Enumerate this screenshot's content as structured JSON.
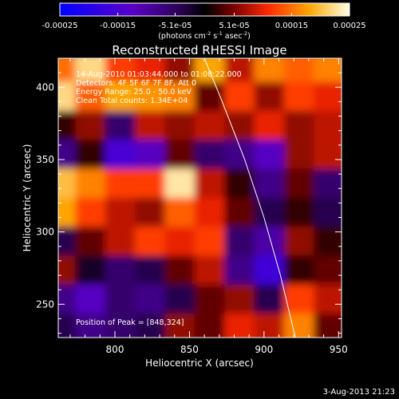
{
  "chart_data": {
    "type": "heatmap",
    "title": "Reconstructed RHESSI Image",
    "xlabel": "Heliocentric X (arcsec)",
    "ylabel": "Heliocentric Y (arcsec)",
    "xlim": [
      762,
      952
    ],
    "ylim": [
      227,
      420
    ],
    "x_ticks": [
      800,
      850,
      900,
      950
    ],
    "y_ticks": [
      250,
      300,
      350,
      400
    ],
    "colorbar": {
      "ticks": [
        "-0.00025",
        "-0.00015",
        "-5.1e-05",
        "5.1e-05",
        "0.00015",
        "0.00025"
      ],
      "tick_values": [
        -0.00025,
        -0.00015,
        -5.1e-05,
        5.1e-05,
        0.00015,
        0.00025
      ],
      "range": [
        -0.00025,
        0.00025
      ],
      "units": "(photons cm",
      "units_sup1": "-2",
      "units_mid": " s",
      "units_sup2": "-1",
      "units_end": " asec",
      "units_sup3": "-2",
      "units_close": ")"
    },
    "annotations": [
      "14-Aug-2010 01:03:44.000 to 01:08:22.000",
      "Detectors: 4F 5F 6F 7F 8F, Att 0",
      "Energy Range: 25.0 - 50.0 keV",
      "Clean     Total counts: 1.34E+04"
    ],
    "peak_label": "Position of Peak = [848,324]",
    "peak": [
      848,
      324
    ],
    "limb_curve": [
      [
        860,
        420
      ],
      [
        872,
        390
      ],
      [
        887,
        350
      ],
      [
        900,
        310
      ],
      [
        911,
        270
      ],
      [
        918,
        240
      ],
      [
        921,
        227
      ]
    ],
    "image_grid": {
      "x": [
        765,
        785,
        805,
        825,
        845,
        865,
        885,
        905,
        925,
        945
      ],
      "y": [
        412,
        392,
        372,
        352,
        332,
        312,
        292,
        272,
        252,
        232
      ],
      "values": [
        [
          0.00015,
          0.00022,
          0.00012,
          0.0001,
          6e-05,
          0.00018,
          8e-05,
          0.00016,
          0.00014,
          0.00016
        ],
        [
          0.00022,
          0.00014,
          0.00018,
          0.00017,
          0.00016,
          4e-05,
          0.00012,
          6e-05,
          0.00012,
          0.0001
        ],
        [
          2e-05,
          6e-05,
          -6e-05,
          8e-05,
          6e-05,
          8e-05,
          6e-05,
          0.0001,
          6e-05,
          8e-05
        ],
        [
          -8e-05,
          2e-05,
          -0.00015,
          -0.00012,
          4e-05,
          -6e-05,
          -8e-05,
          -0.00012,
          6e-05,
          8e-05
        ],
        [
          0.0002,
          0.00016,
          0.00012,
          0.00012,
          0.00023,
          8e-05,
          2e-05,
          -8e-05,
          4e-05,
          -6e-05
        ],
        [
          0.00018,
          0.00012,
          8e-05,
          6e-05,
          0.00014,
          0.0001,
          4e-05,
          -4e-05,
          2e-05,
          -4e-05
        ],
        [
          -4e-05,
          4e-05,
          8e-05,
          0.00012,
          0.0001,
          0.00012,
          -6e-05,
          -0.0001,
          6e-05,
          2e-05
        ],
        [
          6e-05,
          -2e-05,
          -6e-05,
          -4e-05,
          4e-05,
          8e-05,
          -8e-05,
          -0.00016,
          2e-05,
          4e-05
        ],
        [
          -8e-05,
          -0.00012,
          -6e-05,
          -8e-05,
          -4e-05,
          4e-05,
          6e-05,
          -4e-05,
          0.00012,
          8e-05
        ],
        [
          -4e-05,
          -8e-05,
          -6e-05,
          -4e-05,
          6e-05,
          4e-05,
          0.0001,
          8e-05,
          0.00016,
          4e-05
        ]
      ]
    },
    "footer_date": "3-Aug-2013 21:23"
  }
}
